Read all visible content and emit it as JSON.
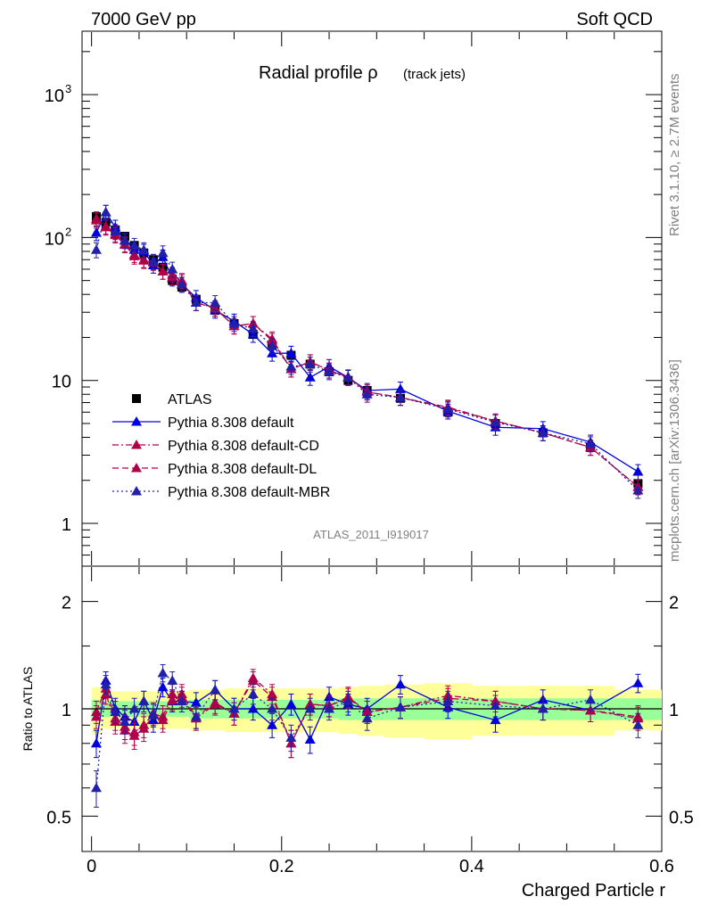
{
  "header": {
    "energy": "7000 GeV pp",
    "process": "Soft QCD"
  },
  "side_labels": {
    "rivet": "Rivet 3.1.10, ≥ 2.7M events",
    "mcplots": "mcplots.cern.ch [arXiv:1306.3436]"
  },
  "chart_data": [
    {
      "type": "scatter",
      "title": "Radial profile ρ",
      "subtitle": "(track jets)",
      "watermark": "ATLAS_2011_I919017",
      "log_y": true,
      "xlim": [
        -0.01,
        0.6
      ],
      "ylim": [
        0.5,
        2600
      ],
      "y_ticks": [
        "1",
        "10",
        "10^2",
        "10^3"
      ],
      "legend_position": "bottom-left",
      "x": [
        0.005,
        0.015,
        0.025,
        0.035,
        0.045,
        0.055,
        0.065,
        0.075,
        0.085,
        0.095,
        0.11,
        0.13,
        0.15,
        0.17,
        0.19,
        0.21,
        0.23,
        0.25,
        0.27,
        0.29,
        0.325,
        0.375,
        0.425,
        0.475,
        0.525,
        0.575
      ],
      "series": [
        {
          "name": "ATLAS",
          "color": "#000000",
          "marker": "square",
          "line": "none",
          "values": [
            140,
            128,
            113,
            102,
            88,
            78,
            70,
            62,
            50,
            45,
            37,
            31,
            25,
            21,
            17.5,
            15,
            13,
            11.5,
            10,
            8.5,
            7.5,
            6,
            5,
            4.3,
            3.4,
            1.9
          ]
        },
        {
          "name": "Pythia 8.308 default",
          "color": "#0000dd",
          "marker": "triangle",
          "line": "solid",
          "values": [
            108,
            150,
            118,
            96,
            82,
            80,
            64,
            73,
            52,
            47,
            38,
            31,
            26,
            21,
            15.5,
            15.5,
            10.5,
            12.5,
            10.5,
            8.5,
            8.7,
            6.1,
            4.7,
            4.6,
            3.7,
            2.3
          ]
        },
        {
          "name": "Pythia 8.308 default-CD",
          "color": "#b0004a",
          "marker": "triangle",
          "line": "dashdot",
          "values": [
            132,
            118,
            104,
            89,
            74,
            69,
            67,
            58,
            53,
            49,
            35,
            32,
            24,
            25,
            19.5,
            12,
            13.5,
            11.8,
            10.6,
            8.3,
            7.6,
            6.5,
            5.2,
            4.3,
            3.4,
            1.8
          ]
        },
        {
          "name": "Pythia 8.308 default-DL",
          "color": "#b0004a",
          "marker": "triangle",
          "line": "dashed",
          "values": [
            135,
            120,
            106,
            90,
            76,
            70,
            68,
            58,
            55,
            50,
            35,
            32,
            24,
            25,
            19,
            12,
            13.5,
            11.8,
            10.5,
            8.3,
            7.6,
            6.4,
            5.2,
            4.3,
            3.4,
            1.8
          ]
        },
        {
          "name": "Pythia 8.308 default-MBR",
          "color": "#2020aa",
          "marker": "triangle",
          "line": "dotted",
          "values": [
            82,
            150,
            110,
            95,
            88,
            82,
            68,
            78,
            60,
            47,
            35,
            35,
            25,
            23,
            17.5,
            12.5,
            13,
            11.5,
            10.5,
            8,
            7.6,
            6.3,
            5.1,
            4.3,
            3.6,
            1.7
          ]
        }
      ]
    },
    {
      "type": "line",
      "ylabel": "Ratio to ATLAS",
      "xlabel": "Charged Particle r",
      "log_y": true,
      "xlim": [
        -0.01,
        0.6
      ],
      "ylim": [
        0.4,
        2.5
      ],
      "x_ticks": [
        "0",
        "0.2",
        "0.4",
        "0.6"
      ],
      "y_ticks": [
        "0.5",
        "1",
        "2"
      ],
      "x": [
        0.005,
        0.015,
        0.025,
        0.035,
        0.045,
        0.055,
        0.065,
        0.075,
        0.085,
        0.095,
        0.11,
        0.13,
        0.15,
        0.17,
        0.19,
        0.21,
        0.23,
        0.25,
        0.27,
        0.29,
        0.325,
        0.375,
        0.425,
        0.475,
        0.525,
        0.575
      ],
      "uncertainty_band_outer": [
        0.15,
        0.12,
        0.12,
        0.12,
        0.12,
        0.12,
        0.12,
        0.12,
        0.12,
        0.12,
        0.13,
        0.13,
        0.14,
        0.14,
        0.14,
        0.14,
        0.14,
        0.14,
        0.15,
        0.16,
        0.17,
        0.18,
        0.16,
        0.16,
        0.16,
        0.13
      ],
      "uncertainty_band_inner": [
        0.06,
        0.05,
        0.05,
        0.05,
        0.05,
        0.05,
        0.05,
        0.05,
        0.05,
        0.05,
        0.06,
        0.06,
        0.06,
        0.06,
        0.06,
        0.06,
        0.06,
        0.06,
        0.07,
        0.07,
        0.07,
        0.07,
        0.07,
        0.07,
        0.07,
        0.07
      ],
      "series": [
        {
          "name": "Pythia 8.308 default",
          "color": "#0000dd",
          "line": "solid",
          "values": [
            0.8,
            1.2,
            1.0,
            0.95,
            0.92,
            1.05,
            0.93,
            1.15,
            1.05,
            1.05,
            1.04,
            1.13,
            1.0,
            1.0,
            0.9,
            1.03,
            0.82,
            1.08,
            1.03,
            1.0,
            1.17,
            1.01,
            0.93,
            1.06,
            0.99,
            1.18
          ]
        },
        {
          "name": "Pythia 8.308 default-CD",
          "color": "#b0004a",
          "line": "dashdot",
          "values": [
            0.95,
            1.1,
            0.92,
            0.87,
            0.84,
            0.88,
            0.96,
            0.93,
            1.06,
            1.08,
            0.94,
            1.03,
            0.97,
            1.22,
            1.1,
            0.8,
            1.03,
            1.02,
            1.08,
            0.98,
            1.01,
            1.09,
            1.05,
            1.0,
            0.99,
            0.94
          ]
        },
        {
          "name": "Pythia 8.308 default-DL",
          "color": "#b0004a",
          "line": "dashed",
          "values": [
            0.98,
            1.14,
            0.94,
            0.89,
            0.86,
            0.9,
            0.97,
            0.95,
            1.1,
            1.1,
            0.95,
            1.04,
            0.97,
            1.2,
            1.08,
            0.8,
            1.03,
            1.02,
            1.07,
            0.98,
            1.01,
            1.07,
            1.05,
            1.0,
            0.99,
            0.95
          ]
        },
        {
          "name": "Pythia 8.308 default-MBR",
          "color": "#2020aa",
          "line": "dotted",
          "values": [
            0.6,
            1.17,
            0.98,
            0.92,
            1.0,
            1.05,
            0.96,
            1.26,
            1.2,
            1.05,
            0.95,
            1.13,
            1.0,
            1.1,
            1.0,
            0.83,
            1.0,
            1.0,
            1.05,
            0.94,
            1.01,
            1.05,
            1.02,
            1.0,
            1.06,
            0.9
          ]
        }
      ]
    }
  ]
}
